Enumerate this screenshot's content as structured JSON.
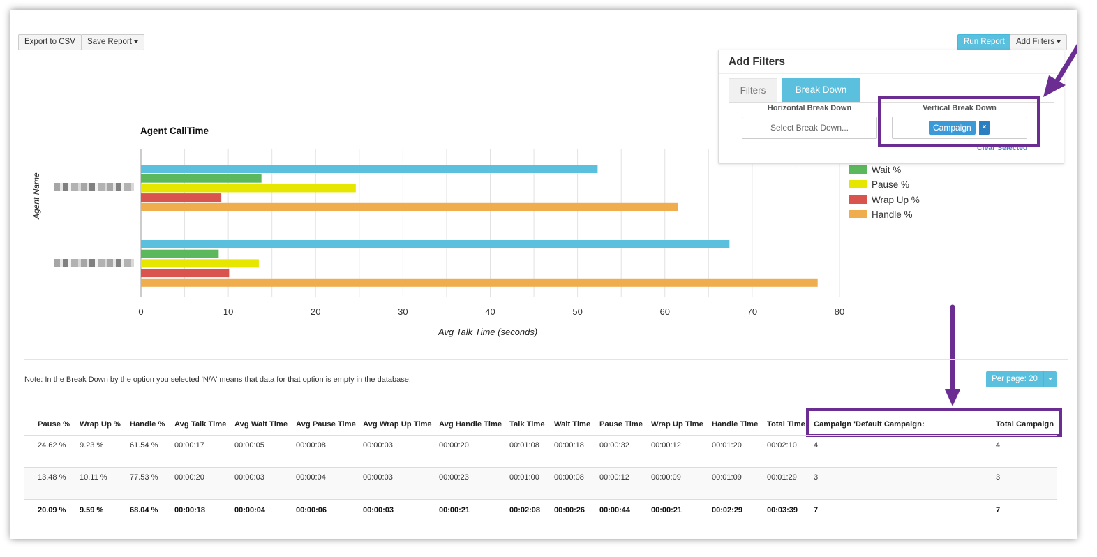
{
  "toolbar": {
    "export_label": "Export to CSV",
    "save_label": "Save Report",
    "run_label": "Run Report",
    "add_filters_label": "Add Filters"
  },
  "filters_panel": {
    "title": "Add Filters",
    "tabs": [
      "Filters",
      "Break Down"
    ],
    "active_tab": "Break Down",
    "horizontal_label": "Horizontal Break Down",
    "horizontal_placeholder": "Select Break Down...",
    "vertical_label": "Vertical Break Down",
    "vertical_tag": "Campaign",
    "tag_remove": "×",
    "clear_label": "Clear Selected"
  },
  "chart_data": {
    "type": "bar",
    "orientation": "horizontal",
    "title": "Agent CallTime",
    "xlabel": "Avg Talk Time (seconds)",
    "ylabel": "Agent Name",
    "xlim": [
      0,
      80
    ],
    "xticks": [
      "0",
      "10",
      "20",
      "30",
      "40",
      "50",
      "60",
      "70",
      "80"
    ],
    "categories": [
      "",
      ""
    ],
    "series": [
      {
        "color": "#5bc0de",
        "values": [
          52.3,
          67.4
        ]
      },
      {
        "name": "Wait %",
        "color": "#5cb85c",
        "values": [
          13.8,
          8.9
        ]
      },
      {
        "name": "Pause %",
        "color": "#e6e600",
        "values": [
          24.6,
          13.5
        ]
      },
      {
        "name": "Wrap Up %",
        "color": "#d9534f",
        "values": [
          9.2,
          10.1
        ]
      },
      {
        "name": "Handle %",
        "color": "#f0ad4e",
        "values": [
          61.5,
          77.5
        ]
      }
    ],
    "grid": true,
    "legend": "right"
  },
  "note": "Note: In the Break Down by the option you selected 'N/A' means that data for that option is empty in the database.",
  "per_page_label": "Per page: 20",
  "table": {
    "headers": [
      "Pause %",
      "Wrap Up %",
      "Handle %",
      "Avg Talk Time",
      "Avg Wait Time",
      "Avg Pause Time",
      "Avg Wrap Up Time",
      "Avg Handle Time",
      "Talk Time",
      "Wait Time",
      "Pause Time",
      "Wrap Up Time",
      "Handle Time",
      "Total Time",
      "Campaign 'Default Campaign:",
      "Total Campaign"
    ],
    "rows": [
      [
        "24.62 %",
        "9.23 %",
        "61.54 %",
        "00:00:17",
        "00:00:05",
        "00:00:08",
        "00:00:03",
        "00:00:20",
        "00:01:08",
        "00:00:18",
        "00:00:32",
        "00:00:12",
        "00:01:20",
        "00:02:10",
        "4",
        "4"
      ],
      [
        "13.48 %",
        "10.11 %",
        "77.53 %",
        "00:00:20",
        "00:00:03",
        "00:00:04",
        "00:00:03",
        "00:00:23",
        "00:01:00",
        "00:00:08",
        "00:00:12",
        "00:00:09",
        "00:01:09",
        "00:01:29",
        "3",
        "3"
      ]
    ],
    "totals": [
      "20.09 %",
      "9.59 %",
      "68.04 %",
      "00:00:18",
      "00:00:04",
      "00:00:06",
      "00:00:03",
      "00:00:21",
      "00:02:08",
      "00:00:26",
      "00:00:44",
      "00:00:21",
      "00:02:29",
      "00:03:39",
      "7",
      "7"
    ]
  },
  "colors": {
    "accent": "#5bc0de",
    "highlight": "#6b2d91",
    "tag": "#3c99d8"
  }
}
